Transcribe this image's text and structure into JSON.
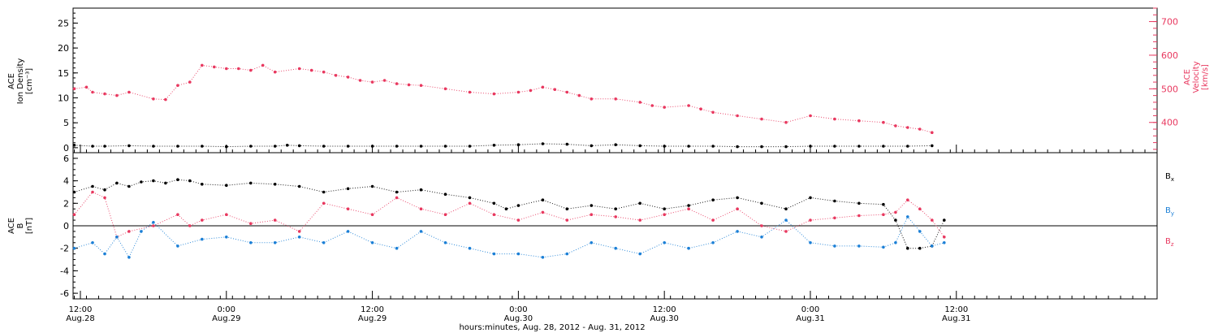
{
  "colors": {
    "velocity": "#e8385f",
    "density": "#000000",
    "bx": "#000000",
    "by": "#1b7fd6",
    "bz": "#e8385f",
    "axes": "#000000"
  },
  "x_axis": {
    "label": "hours:minutes, Aug. 28, 2012 - Aug. 31, 2012",
    "range_hours": [
      -0.6,
      88.5
    ],
    "ticks": [
      {
        "h": 0,
        "time": "12:00",
        "day": "Aug.28"
      },
      {
        "h": 12,
        "time": "0:00",
        "day": "Aug.29"
      },
      {
        "h": 24,
        "time": "12:00",
        "day": "Aug.29"
      },
      {
        "h": 36,
        "time": "0:00",
        "day": "Aug.30"
      },
      {
        "h": 48,
        "time": "12:00",
        "day": "Aug.30"
      },
      {
        "h": 60,
        "time": "0:00",
        "day": "Aug.31"
      },
      {
        "h": 72,
        "time": "12:00",
        "day": "Aug.31"
      }
    ]
  },
  "chart_data": [
    {
      "type": "scatter",
      "panel": "top",
      "ylabel_left": [
        "ACE",
        "Ion Density",
        "[cm⁻³]"
      ],
      "ylabel_right": [
        "ACE",
        "Velocity",
        "[km/s]"
      ],
      "ylim_left": [
        -1,
        28
      ],
      "yticks_left": [
        0,
        5,
        10,
        15,
        20,
        25
      ],
      "ylim_right": [
        310,
        740
      ],
      "yticks_right": [
        400,
        500,
        600,
        700
      ],
      "series": [
        {
          "name": "",
          "axis": "right",
          "color_key": "velocity",
          "x": [
            -0.5,
            0.5,
            1,
            2,
            3,
            4,
            6,
            7,
            8,
            9,
            10,
            11,
            12,
            13,
            14,
            15,
            16,
            18,
            19,
            20,
            21,
            22,
            23,
            24,
            25,
            26,
            27,
            28,
            30,
            32,
            34,
            36,
            37,
            38,
            39,
            40,
            41,
            42,
            44,
            46,
            47,
            48,
            50,
            51,
            52,
            54,
            56,
            58,
            60,
            62,
            64,
            66,
            67,
            68,
            69,
            70
          ],
          "y": [
            500,
            505,
            490,
            485,
            480,
            490,
            470,
            468,
            510,
            520,
            570,
            565,
            560,
            560,
            555,
            570,
            550,
            560,
            555,
            550,
            540,
            535,
            525,
            520,
            525,
            515,
            512,
            510,
            500,
            490,
            485,
            490,
            495,
            505,
            498,
            490,
            480,
            470,
            470,
            460,
            450,
            445,
            450,
            440,
            430,
            420,
            410,
            400,
            420,
            410,
            405,
            400,
            390,
            385,
            380,
            370
          ]
        },
        {
          "name": "",
          "axis": "left",
          "color_key": "density",
          "x": [
            -0.5,
            1,
            2,
            4,
            6,
            8,
            10,
            12,
            14,
            16,
            17,
            18,
            20,
            22,
            24,
            26,
            28,
            30,
            32,
            34,
            36,
            38,
            40,
            42,
            44,
            46,
            48,
            50,
            52,
            54,
            56,
            58,
            60,
            62,
            64,
            66,
            68,
            70
          ],
          "y": [
            0.5,
            0.3,
            0.3,
            0.4,
            0.3,
            0.3,
            0.3,
            0.2,
            0.3,
            0.3,
            0.5,
            0.4,
            0.3,
            0.3,
            0.3,
            0.3,
            0.3,
            0.3,
            0.3,
            0.5,
            0.6,
            0.8,
            0.7,
            0.4,
            0.6,
            0.4,
            0.3,
            0.3,
            0.3,
            0.2,
            0.2,
            0.2,
            0.3,
            0.3,
            0.3,
            0.3,
            0.3,
            0.4
          ]
        }
      ]
    },
    {
      "type": "scatter",
      "panel": "bottom",
      "ylabel": [
        "ACE",
        "B",
        "[nT]"
      ],
      "ylim": [
        -6.5,
        6.5
      ],
      "yticks": [
        -6,
        -4,
        -2,
        0,
        2,
        4,
        6
      ],
      "series": [
        {
          "name": "Bx",
          "color_key": "bx",
          "x": [
            -0.5,
            1,
            2,
            3,
            4,
            5,
            6,
            7,
            8,
            9,
            10,
            12,
            14,
            16,
            18,
            20,
            22,
            24,
            26,
            28,
            30,
            32,
            34,
            35,
            36,
            38,
            40,
            42,
            44,
            46,
            48,
            50,
            52,
            54,
            56,
            58,
            60,
            62,
            64,
            66,
            67,
            68,
            69,
            70,
            71
          ],
          "y": [
            3,
            3.5,
            3.2,
            3.8,
            3.5,
            3.9,
            4.0,
            3.8,
            4.1,
            4.0,
            3.7,
            3.6,
            3.8,
            3.7,
            3.5,
            3.0,
            3.3,
            3.5,
            3.0,
            3.2,
            2.8,
            2.5,
            2.0,
            1.5,
            1.8,
            2.3,
            1.5,
            1.8,
            1.5,
            2.0,
            1.5,
            1.8,
            2.3,
            2.5,
            2.0,
            1.5,
            2.5,
            2.2,
            2.0,
            1.9,
            0.5,
            -2.0,
            -2.0,
            -1.8,
            0.5
          ]
        },
        {
          "name": "By",
          "color_key": "by",
          "x": [
            -0.5,
            1,
            2,
            3,
            4,
            5,
            6,
            8,
            10,
            12,
            14,
            16,
            18,
            20,
            22,
            24,
            26,
            28,
            30,
            32,
            34,
            36,
            38,
            40,
            42,
            44,
            46,
            48,
            50,
            52,
            54,
            56,
            58,
            60,
            62,
            64,
            66,
            67,
            68,
            69,
            70,
            71
          ],
          "y": [
            -2,
            -1.5,
            -2.5,
            -1.0,
            -2.8,
            -0.5,
            0.3,
            -1.8,
            -1.2,
            -1.0,
            -1.5,
            -1.5,
            -1.0,
            -1.5,
            -0.5,
            -1.5,
            -2.0,
            -0.5,
            -1.5,
            -2.0,
            -2.5,
            -2.5,
            -2.8,
            -2.5,
            -1.5,
            -2.0,
            -2.5,
            -1.5,
            -2.0,
            -1.5,
            -0.5,
            -1.0,
            0.5,
            -1.5,
            -1.8,
            -1.8,
            -1.9,
            -1.5,
            0.8,
            -0.5,
            -1.8,
            -1.5
          ]
        },
        {
          "name": "Bz",
          "color_key": "bz",
          "x": [
            -0.5,
            1,
            2,
            3,
            4,
            6,
            8,
            9,
            10,
            12,
            14,
            16,
            18,
            20,
            22,
            24,
            26,
            28,
            30,
            32,
            34,
            36,
            38,
            40,
            42,
            44,
            46,
            48,
            50,
            52,
            54,
            56,
            58,
            60,
            62,
            64,
            66,
            67,
            68,
            69,
            70,
            71
          ],
          "y": [
            1.0,
            3.0,
            2.5,
            -1.0,
            -0.5,
            0,
            1.0,
            0,
            0.5,
            1.0,
            0.2,
            0.5,
            -0.5,
            2.0,
            1.5,
            1.0,
            2.5,
            1.5,
            1.0,
            2.0,
            1.0,
            0.5,
            1.2,
            0.5,
            1.0,
            0.8,
            0.5,
            1.0,
            1.5,
            0.5,
            1.5,
            0,
            -0.5,
            0.5,
            0.7,
            0.9,
            1.0,
            1.2,
            2.3,
            1.5,
            0.5,
            -1.0
          ]
        }
      ]
    }
  ]
}
